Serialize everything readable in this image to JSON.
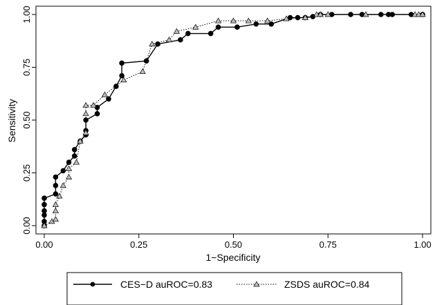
{
  "chart_data": {
    "type": "line",
    "xlabel": "1−Specificity",
    "ylabel": "Sensitivity",
    "xlim": [
      0,
      1
    ],
    "ylim": [
      0,
      1
    ],
    "xticks": [
      "0.00",
      "0.25",
      "0.50",
      "0.75",
      "1.00"
    ],
    "yticks": [
      "0.00",
      "0.25",
      "0.50",
      "0.75",
      "1.00"
    ],
    "grid": false,
    "legend_position": "bottom",
    "series": [
      {
        "name": "CES−D auROC=0.83",
        "line_style": "solid",
        "marker": "circle",
        "color": "#000000",
        "points": [
          [
            0,
            0
          ],
          [
            0,
            0.02
          ],
          [
            0,
            0.05
          ],
          [
            0,
            0.07
          ],
          [
            0,
            0.1
          ],
          [
            0,
            0.13
          ],
          [
            0.03,
            0.15
          ],
          [
            0.03,
            0.19
          ],
          [
            0.03,
            0.23
          ],
          [
            0.05,
            0.26
          ],
          [
            0.065,
            0.3
          ],
          [
            0.08,
            0.33
          ],
          [
            0.08,
            0.36
          ],
          [
            0.095,
            0.4
          ],
          [
            0.11,
            0.43
          ],
          [
            0.11,
            0.45
          ],
          [
            0.11,
            0.5
          ],
          [
            0.14,
            0.53
          ],
          [
            0.14,
            0.56
          ],
          [
            0.17,
            0.6
          ],
          [
            0.19,
            0.66
          ],
          [
            0.205,
            0.71
          ],
          [
            0.205,
            0.77
          ],
          [
            0.27,
            0.78
          ],
          [
            0.3,
            0.86
          ],
          [
            0.36,
            0.88
          ],
          [
            0.38,
            0.91
          ],
          [
            0.44,
            0.91
          ],
          [
            0.46,
            0.94
          ],
          [
            0.51,
            0.94
          ],
          [
            0.56,
            0.955
          ],
          [
            0.6,
            0.955
          ],
          [
            0.65,
            0.985
          ],
          [
            0.67,
            0.985
          ],
          [
            0.69,
            0.985
          ],
          [
            0.71,
            0.99
          ],
          [
            0.73,
            1.0
          ],
          [
            0.76,
            1.0
          ],
          [
            0.81,
            1.0
          ],
          [
            0.84,
            1.0
          ],
          [
            0.89,
            1.0
          ],
          [
            0.91,
            1.0
          ],
          [
            0.92,
            1.0
          ],
          [
            0.97,
            1.0
          ],
          [
            1.0,
            1.0
          ]
        ]
      },
      {
        "name": "ZSDS auROC=0.84",
        "line_style": "dotted",
        "marker": "triangle",
        "color": "#000000",
        "points": [
          [
            0,
            0
          ],
          [
            0.02,
            0.02
          ],
          [
            0.03,
            0.03
          ],
          [
            0.03,
            0.07
          ],
          [
            0.03,
            0.1
          ],
          [
            0.04,
            0.14
          ],
          [
            0.05,
            0.19
          ],
          [
            0.065,
            0.23
          ],
          [
            0.065,
            0.27
          ],
          [
            0.085,
            0.3
          ],
          [
            0.095,
            0.4
          ],
          [
            0.11,
            0.44
          ],
          [
            0.11,
            0.53
          ],
          [
            0.11,
            0.57
          ],
          [
            0.13,
            0.57
          ],
          [
            0.16,
            0.62
          ],
          [
            0.21,
            0.69
          ],
          [
            0.26,
            0.73
          ],
          [
            0.285,
            0.86
          ],
          [
            0.33,
            0.88
          ],
          [
            0.35,
            0.92
          ],
          [
            0.4,
            0.94
          ],
          [
            0.46,
            0.97
          ],
          [
            0.5,
            0.97
          ],
          [
            0.54,
            0.97
          ],
          [
            0.59,
            0.97
          ],
          [
            0.64,
            0.98
          ],
          [
            0.69,
            0.985
          ],
          [
            0.72,
            1.0
          ],
          [
            0.73,
            1.0
          ],
          [
            0.75,
            1.0
          ],
          [
            0.85,
            1.0
          ],
          [
            0.98,
            1.0
          ],
          [
            0.99,
            1.0
          ],
          [
            1.0,
            1.0
          ]
        ]
      }
    ]
  }
}
